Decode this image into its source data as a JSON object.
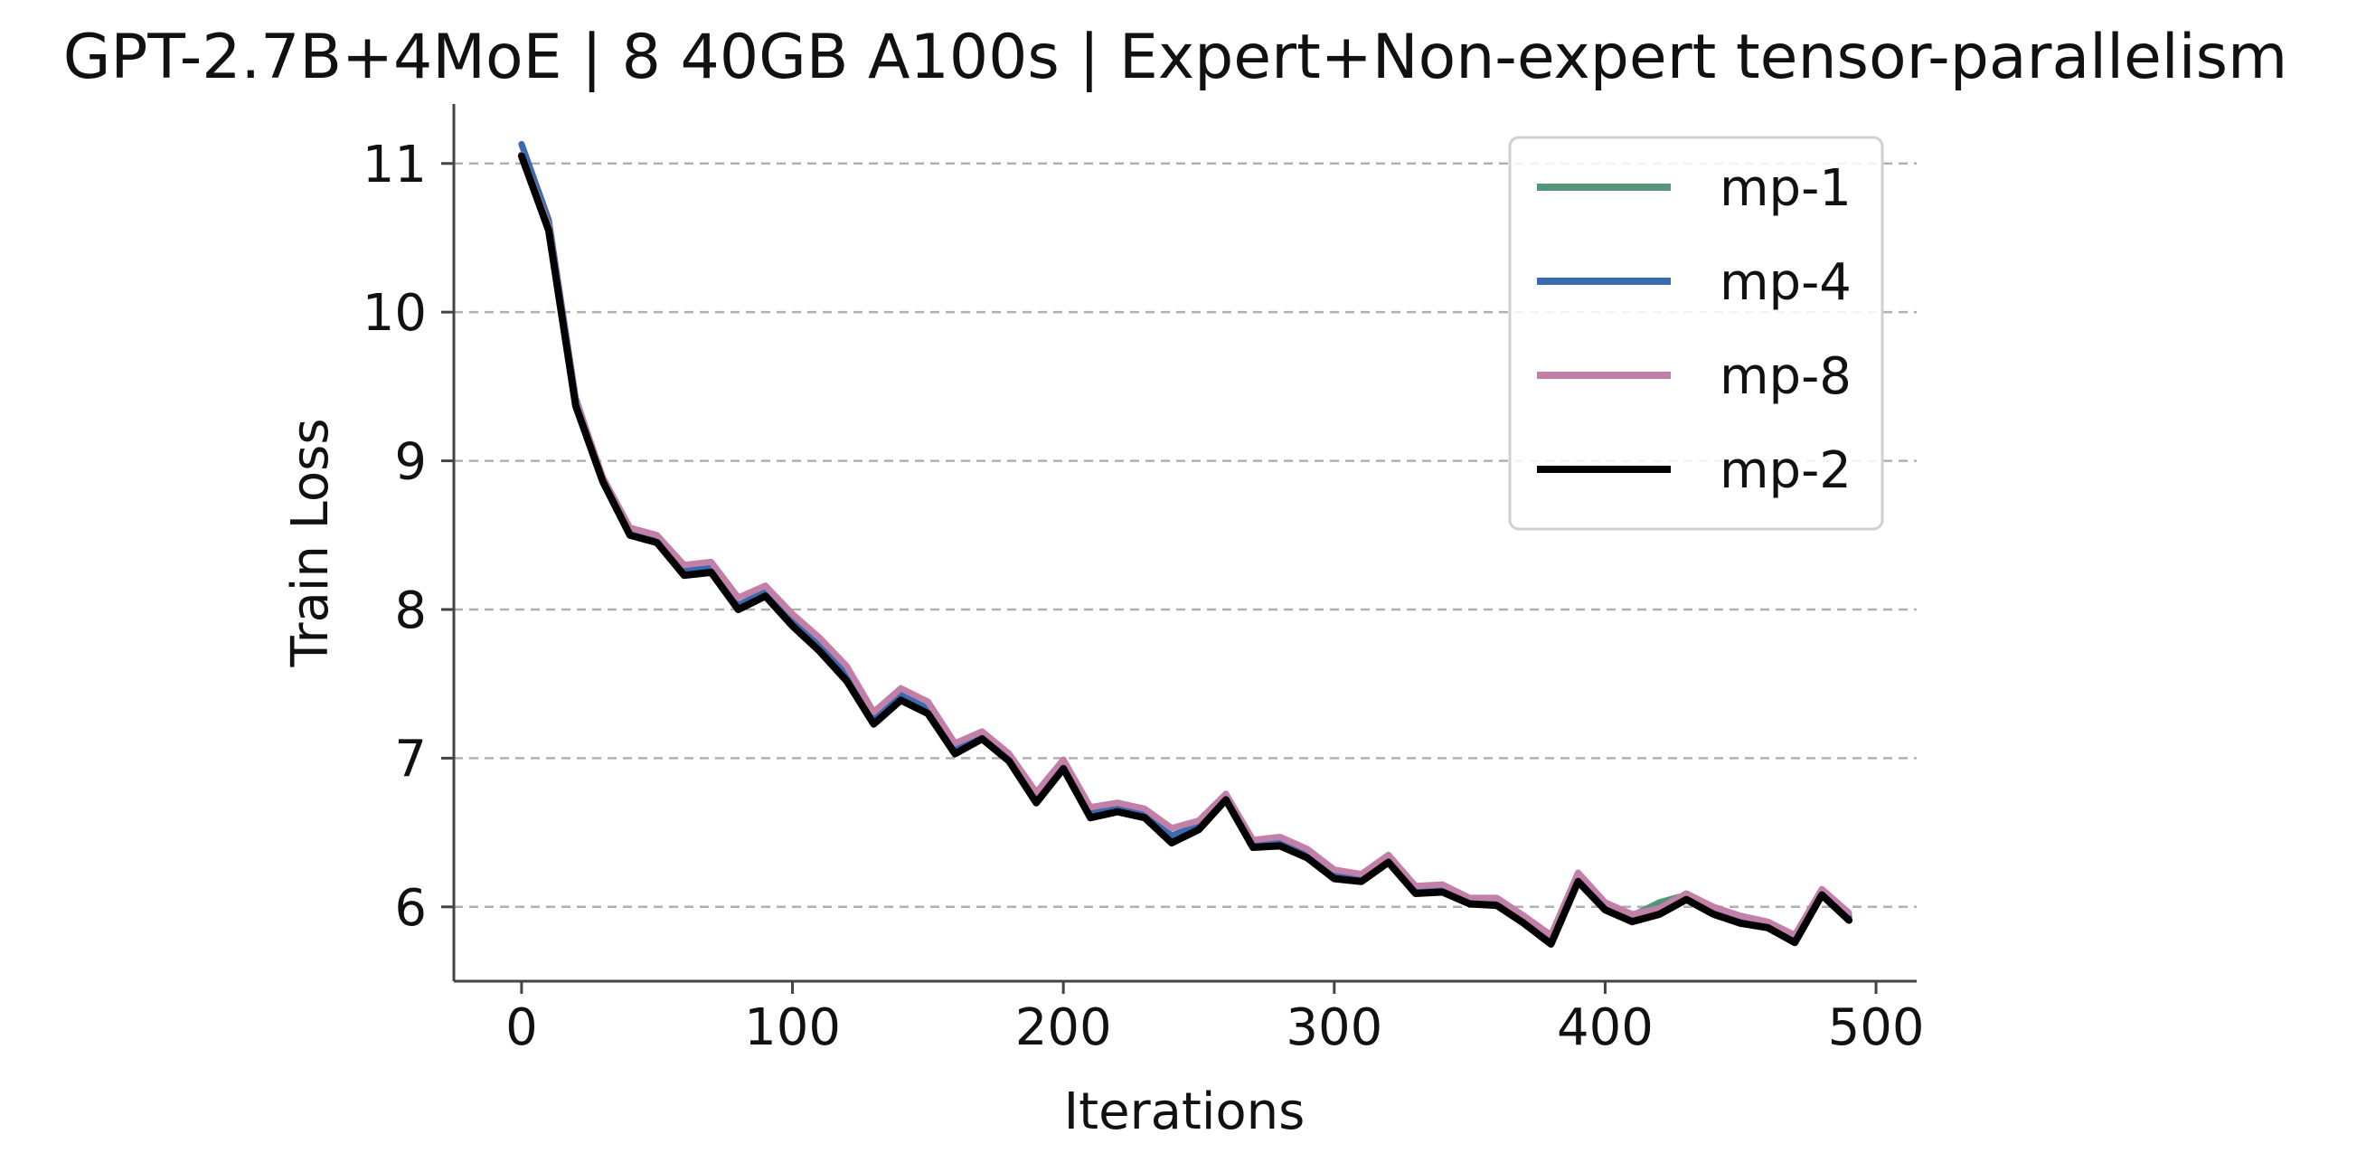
{
  "chart_data": {
    "type": "line",
    "title": "GPT-2.7B+4MoE | 8 40GB A100s | Expert+Non-expert tensor-parallelism",
    "xlabel": "Iterations",
    "ylabel": "Train Loss",
    "xlim": [
      -25,
      515
    ],
    "ylim": [
      5.5,
      11.4
    ],
    "xticks": [
      0,
      100,
      200,
      300,
      400,
      500
    ],
    "yticks": [
      6,
      7,
      8,
      9,
      10,
      11
    ],
    "xtick_labels": [
      "0",
      "100",
      "200",
      "300",
      "400",
      "500"
    ],
    "ytick_labels": [
      "6",
      "7",
      "8",
      "9",
      "10",
      "11"
    ],
    "grid": "horizontal dashed",
    "legend_position": "top-right",
    "x": [
      0,
      10,
      20,
      30,
      40,
      50,
      60,
      70,
      80,
      90,
      100,
      110,
      120,
      130,
      140,
      150,
      160,
      170,
      180,
      190,
      200,
      210,
      220,
      230,
      240,
      250,
      260,
      270,
      280,
      290,
      300,
      310,
      320,
      330,
      340,
      350,
      360,
      370,
      380,
      390,
      400,
      410,
      420,
      430,
      440,
      450,
      460,
      470,
      480,
      490
    ],
    "series": [
      {
        "name": "mp-1",
        "color": "#55957a",
        "values": [
          11.05,
          10.58,
          9.4,
          8.88,
          8.53,
          8.47,
          8.27,
          8.28,
          8.03,
          8.12,
          7.93,
          7.76,
          7.56,
          7.27,
          7.43,
          7.34,
          7.07,
          7.16,
          7.02,
          6.73,
          6.96,
          6.63,
          6.67,
          6.63,
          6.47,
          6.55,
          6.75,
          6.42,
          6.44,
          6.36,
          6.22,
          6.19,
          6.33,
          6.11,
          6.12,
          6.04,
          6.03,
          5.91,
          5.78,
          6.2,
          6.01,
          5.94,
          6.03,
          6.08,
          5.98,
          5.91,
          5.88,
          5.79,
          6.1,
          5.93
        ]
      },
      {
        "name": "mp-4",
        "color": "#3a6ab0",
        "values": [
          11.13,
          10.62,
          9.42,
          8.88,
          8.53,
          8.47,
          8.27,
          8.28,
          8.03,
          8.12,
          7.93,
          7.77,
          7.57,
          7.27,
          7.43,
          7.34,
          7.07,
          7.16,
          7.02,
          6.73,
          6.96,
          6.63,
          6.67,
          6.63,
          6.48,
          6.55,
          6.75,
          6.42,
          6.43,
          6.36,
          6.22,
          6.19,
          6.33,
          6.11,
          6.12,
          6.04,
          6.03,
          5.91,
          5.78,
          6.2,
          6.0,
          5.93,
          5.97,
          6.07,
          5.97,
          5.91,
          5.87,
          5.79,
          6.1,
          5.94
        ]
      },
      {
        "name": "mp-8",
        "color": "#c27fa7",
        "values": [
          11.06,
          10.58,
          9.41,
          8.89,
          8.55,
          8.5,
          8.3,
          8.32,
          8.08,
          8.16,
          7.97,
          7.81,
          7.62,
          7.31,
          7.47,
          7.38,
          7.1,
          7.18,
          7.03,
          6.77,
          6.99,
          6.67,
          6.7,
          6.66,
          6.53,
          6.58,
          6.76,
          6.45,
          6.47,
          6.39,
          6.25,
          6.22,
          6.35,
          6.14,
          6.15,
          6.06,
          6.06,
          5.94,
          5.81,
          6.23,
          6.03,
          5.95,
          5.99,
          6.09,
          6.0,
          5.94,
          5.9,
          5.81,
          6.12,
          5.96
        ]
      },
      {
        "name": "mp-2",
        "color": "#000000",
        "values": [
          11.05,
          10.55,
          9.37,
          8.86,
          8.5,
          8.45,
          8.23,
          8.25,
          8.0,
          8.09,
          7.89,
          7.72,
          7.52,
          7.23,
          7.39,
          7.3,
          7.03,
          7.13,
          6.98,
          6.7,
          6.93,
          6.6,
          6.64,
          6.6,
          6.43,
          6.52,
          6.72,
          6.4,
          6.41,
          6.33,
          6.19,
          6.17,
          6.3,
          6.09,
          6.1,
          6.02,
          6.01,
          5.89,
          5.75,
          6.17,
          5.98,
          5.9,
          5.95,
          6.05,
          5.95,
          5.89,
          5.86,
          5.76,
          6.08,
          5.91
        ]
      }
    ]
  }
}
